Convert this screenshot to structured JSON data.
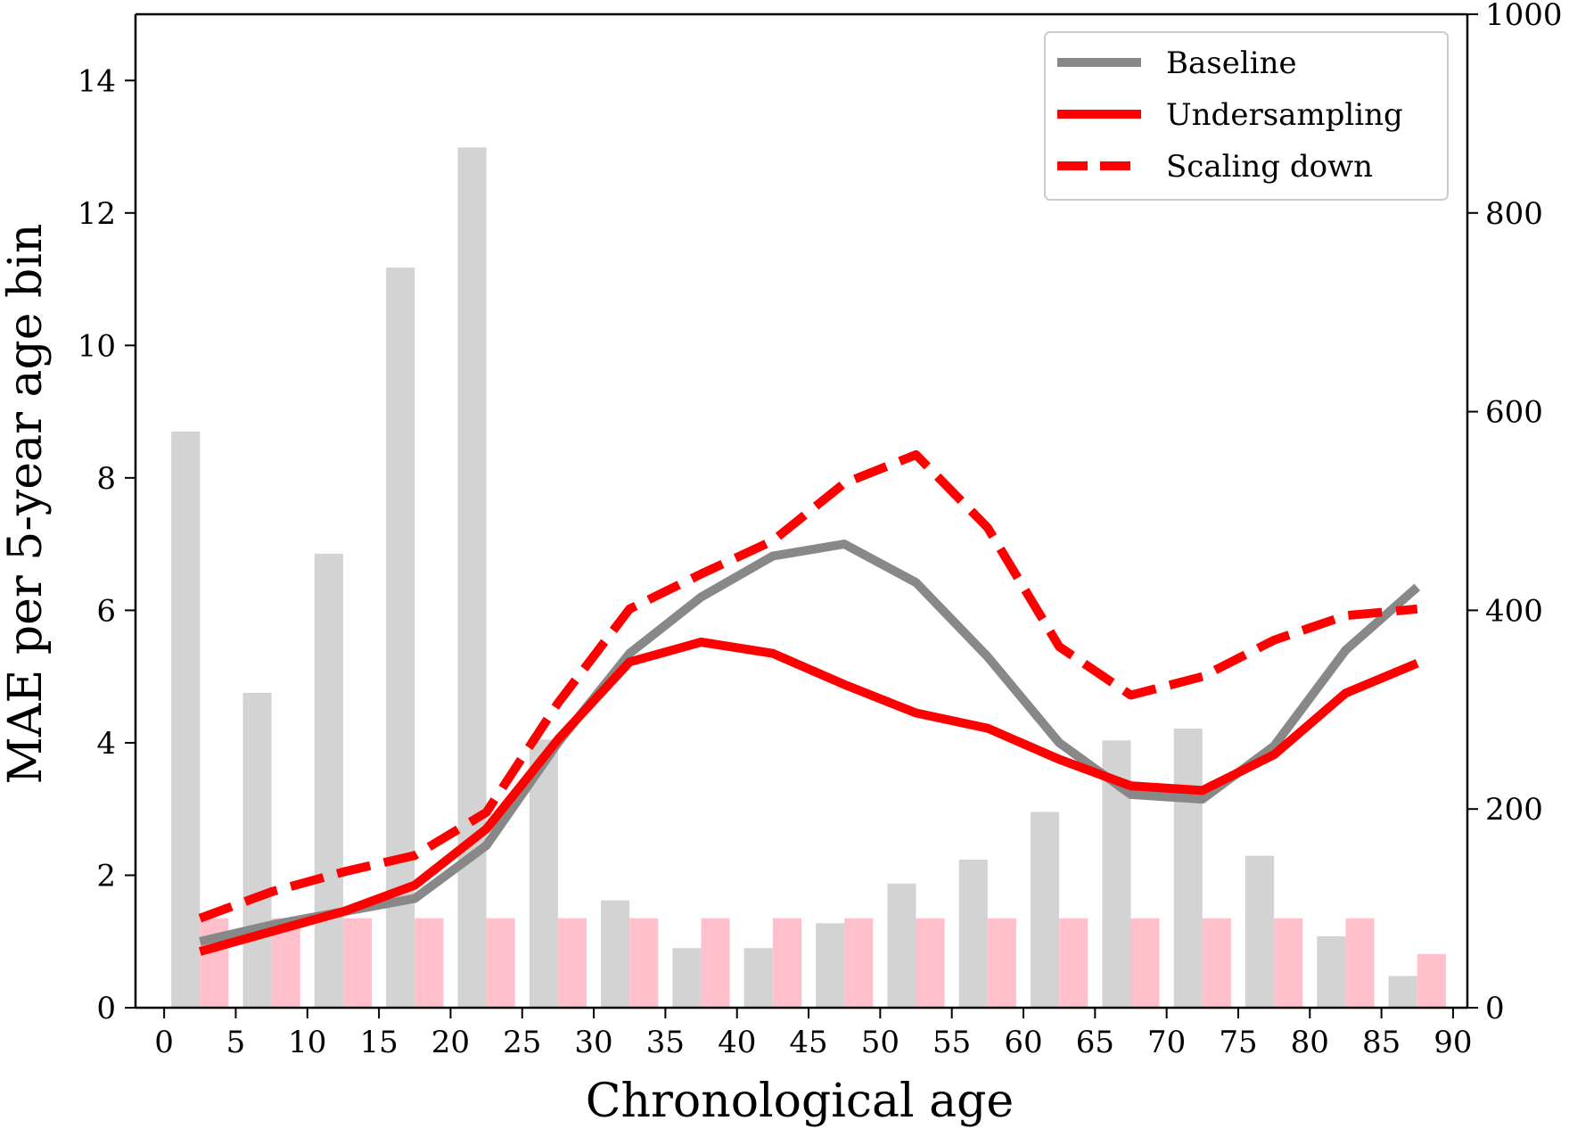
{
  "chart_data": {
    "type": "bar",
    "xlabel": "Chronological age",
    "ylabel": "MAE per 5-year age bin",
    "x_ticks": [
      "0",
      "5",
      "10",
      "15",
      "20",
      "25",
      "30",
      "35",
      "40",
      "45",
      "50",
      "55",
      "60",
      "65",
      "70",
      "75",
      "80",
      "85",
      "90"
    ],
    "xlim": [
      -2,
      91
    ],
    "ylim": [
      0,
      15
    ],
    "y_ticks": [
      "0",
      "2",
      "4",
      "6",
      "8",
      "10",
      "12",
      "14"
    ],
    "y2lim": [
      0,
      1000
    ],
    "y2_ticks": [
      "0",
      "200",
      "400",
      "600",
      "800",
      "1000"
    ],
    "bin_centers": [
      2.5,
      7.5,
      12.5,
      17.5,
      22.5,
      27.5,
      32.5,
      37.5,
      42.5,
      47.5,
      52.5,
      57.5,
      62.5,
      67.5,
      72.5,
      77.5,
      82.5,
      87.5
    ],
    "bars": [
      {
        "color": "#d3d3d3",
        "axis": "right",
        "values": [
          580,
          317,
          457,
          745,
          866,
          270,
          108,
          60,
          60,
          85,
          125,
          149,
          197,
          269,
          281,
          153,
          72,
          32
        ]
      },
      {
        "color": "#ffc0cb",
        "axis": "right",
        "values": [
          90,
          90,
          90,
          90,
          90,
          90,
          90,
          90,
          90,
          90,
          90,
          90,
          90,
          90,
          90,
          90,
          90,
          54
        ]
      }
    ],
    "series": [
      {
        "name": "Baseline",
        "color": "#888888",
        "style": "solid",
        "values": [
          1.0,
          1.25,
          1.45,
          1.65,
          2.45,
          4.0,
          5.35,
          6.2,
          6.82,
          7.0,
          6.42,
          5.3,
          4.0,
          3.22,
          3.15,
          3.95,
          5.4,
          6.35
        ]
      },
      {
        "name": "Undersampling",
        "color": "#ff0000",
        "style": "solid",
        "values": [
          0.85,
          1.15,
          1.45,
          1.85,
          2.7,
          4.05,
          5.22,
          5.52,
          5.35,
          4.88,
          4.45,
          4.22,
          3.75,
          3.35,
          3.28,
          3.82,
          4.75,
          5.2
        ]
      },
      {
        "name": "Scaling down",
        "color": "#ff0000",
        "style": "dashed",
        "values": [
          1.35,
          1.75,
          2.05,
          2.3,
          2.95,
          4.6,
          6.02,
          6.55,
          7.05,
          7.92,
          8.35,
          7.25,
          5.45,
          4.72,
          5.0,
          5.55,
          5.92,
          6.02
        ]
      }
    ],
    "legend": {
      "location": "top-right",
      "entries": [
        "Baseline",
        "Undersampling",
        "Scaling down"
      ]
    },
    "grid": false
  }
}
